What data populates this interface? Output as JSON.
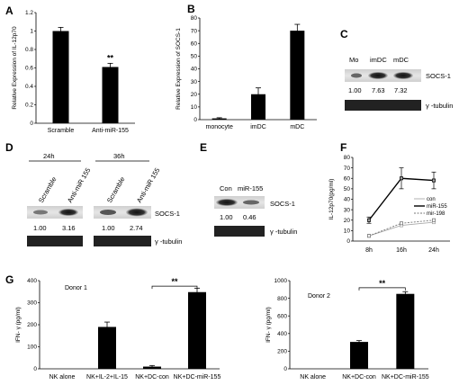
{
  "chart_data": [
    {
      "panel": "A",
      "type": "bar",
      "categories": [
        "Scramble",
        "Anti-miR-155"
      ],
      "values": [
        1.0,
        0.61
      ],
      "errors": [
        0.04,
        0.04
      ],
      "annotations": [
        "",
        "**"
      ],
      "ylabel": "Relative Expression of IL-12p70",
      "ylim": [
        0,
        1.2
      ],
      "yticks": [
        "0",
        "0.2",
        "0.4",
        "0.6",
        "0.8",
        "1",
        "1.2"
      ]
    },
    {
      "panel": "B",
      "type": "bar",
      "categories": [
        "monocyte",
        "imDC",
        "mDC"
      ],
      "values": [
        1,
        20,
        70
      ],
      "errors": [
        0.5,
        5,
        5
      ],
      "ylabel": "Relative Expression of SOCS-1",
      "ylim": [
        0,
        80
      ],
      "yticks": [
        "0",
        "10",
        "20",
        "30",
        "40",
        "50",
        "60",
        "70",
        "80"
      ]
    },
    {
      "panel": "F",
      "type": "line",
      "x": [
        "8h",
        "16h",
        "24h"
      ],
      "series": [
        {
          "name": "con",
          "values": [
            5,
            15,
            18
          ],
          "color": "#aaaaaa"
        },
        {
          "name": "miR-155",
          "values": [
            20,
            60,
            58
          ],
          "color": "#000000"
        },
        {
          "name": "mir-198",
          "values": [
            5,
            17,
            20
          ],
          "color": "#777777"
        }
      ],
      "errors_mir155": [
        3,
        10,
        8
      ],
      "ylabel": "IL-12p70(pg/ml)",
      "ylim": [
        0,
        80
      ],
      "yticks": [
        "0",
        "10",
        "20",
        "30",
        "40",
        "50",
        "60",
        "70",
        "80"
      ]
    },
    {
      "panel": "G",
      "title": "Donor 1",
      "type": "bar",
      "categories": [
        "NK alone",
        "NK+IL-2+IL-15",
        "NK+DC-con",
        "NK+DC-miR-155"
      ],
      "values": [
        0,
        190,
        10,
        348
      ],
      "errors": [
        0,
        22,
        5,
        18
      ],
      "sig": "**",
      "ylabel": "IFN- γ (pg/ml)",
      "ylim": [
        0,
        400
      ],
      "yticks": [
        "0",
        "100",
        "200",
        "300",
        "400"
      ]
    },
    {
      "panel": "G",
      "title": "Donor 2",
      "type": "bar",
      "categories": [
        "NK alone",
        "NK+DC-con",
        "NK+DC-miR-155"
      ],
      "values": [
        0,
        305,
        850
      ],
      "errors": [
        0,
        15,
        25
      ],
      "sig": "**",
      "ylabel": "IFN- γ (pg/ml)",
      "ylim": [
        0,
        1000
      ],
      "yticks": [
        "0",
        "200",
        "400",
        "600",
        "800",
        "1000"
      ]
    }
  ],
  "blots": {
    "C": {
      "lanes": [
        "Mo",
        "imDC",
        "mDC"
      ],
      "quant": [
        "1.00",
        "7.63",
        "7.32"
      ],
      "protein": "SOCS-1",
      "loading": "γ -tubulin"
    },
    "D": {
      "times": [
        "24h",
        "36h"
      ],
      "lanes": [
        "Scramble",
        "Anti-miR 155",
        "Scramble",
        "Anti-miR 155"
      ],
      "quant": [
        "1.00",
        "3.16",
        "1.00",
        "2.74"
      ],
      "protein": "SOCS-1",
      "loading": "γ -tubulin"
    },
    "E": {
      "lanes": [
        "Con",
        "miR-155"
      ],
      "quant": [
        "1.00",
        "0.46"
      ],
      "protein": "SOCS-1",
      "loading": "γ -tubulin"
    }
  },
  "panel_labels": [
    "A",
    "B",
    "C",
    "D",
    "E",
    "F",
    "G"
  ]
}
